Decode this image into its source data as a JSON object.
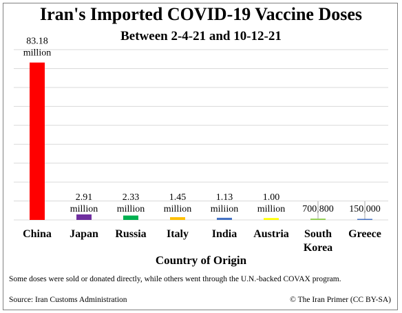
{
  "chart_data": {
    "type": "bar",
    "title": "Iran's Imported COVID-19 Vaccine Doses",
    "subtitle": "Between 2-4-21 and 10-12-21",
    "xlabel": "Country of Origin",
    "ylabel": "",
    "ylim": [
      0,
      90000000
    ],
    "grid": true,
    "legend": "none",
    "categories": [
      "China",
      "Japan",
      "Russia",
      "Italy",
      "India",
      "Austria",
      "South Korea",
      "Greece"
    ],
    "category_lines": [
      [
        "China"
      ],
      [
        "Japan"
      ],
      [
        "Russia"
      ],
      [
        "Italy"
      ],
      [
        "India"
      ],
      [
        "Austria"
      ],
      [
        "South",
        "Korea"
      ],
      [
        "Greece"
      ]
    ],
    "values": [
      83180000,
      2910000,
      2330000,
      1450000,
      1130000,
      1000000,
      700800,
      150000
    ],
    "data_labels": [
      [
        "83.18",
        "million"
      ],
      [
        "2.91",
        "million"
      ],
      [
        "2.33",
        "million"
      ],
      [
        "1.45",
        "million"
      ],
      [
        "1.13",
        "miliion"
      ],
      [
        "1.00",
        "million"
      ],
      [
        "700,800"
      ],
      [
        "150,000"
      ]
    ],
    "colors": [
      "#ff0000",
      "#7030a0",
      "#00b050",
      "#ffc000",
      "#4472c4",
      "#ffff00",
      "#92d050",
      "#4472c4"
    ]
  },
  "footer": {
    "note": "Some doses were sold or donated directly, while others went through the U.N.-backed COVAX program.",
    "source": "Source: Iran Customs Administration",
    "credit": "© The Iran Primer (CC BY-SA)"
  }
}
